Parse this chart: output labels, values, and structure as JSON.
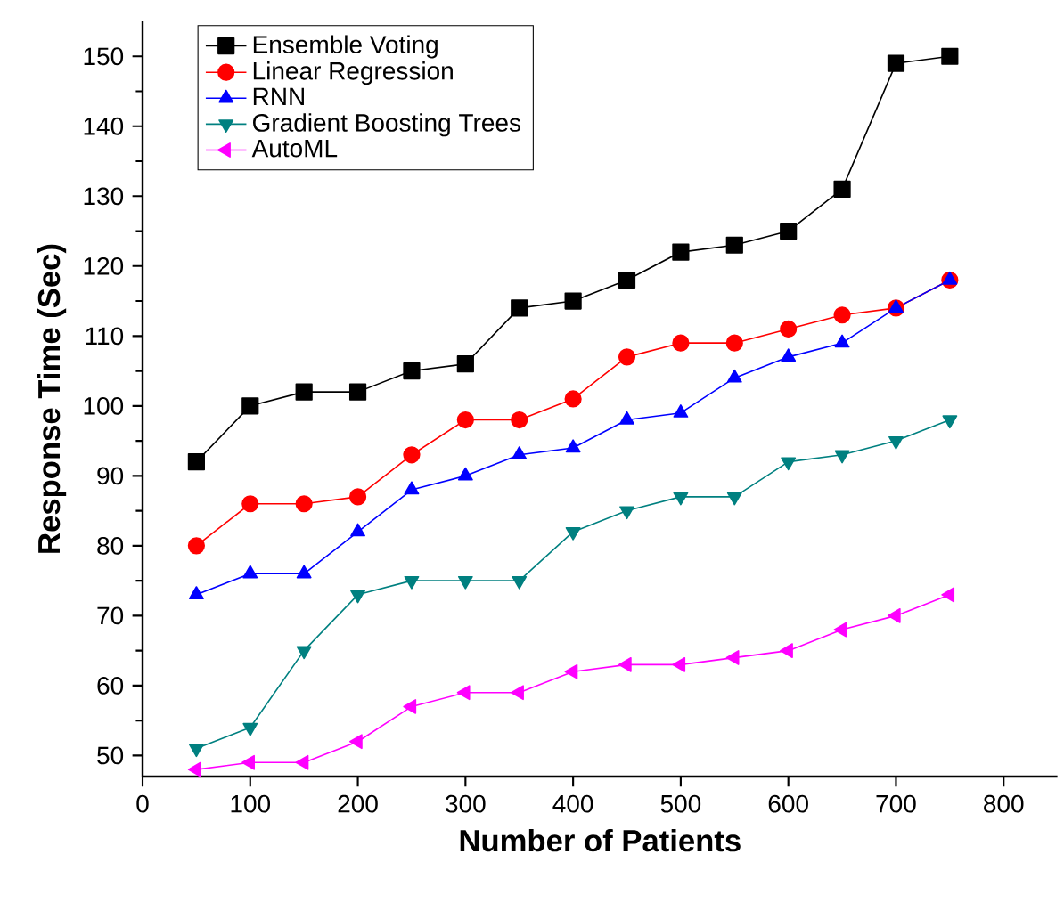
{
  "chart_data": {
    "type": "line",
    "xlabel": "Number of Patients",
    "ylabel": "Response Time (Sec)",
    "x": [
      50,
      100,
      150,
      200,
      250,
      300,
      350,
      400,
      450,
      500,
      550,
      600,
      650,
      700,
      750
    ],
    "series": [
      {
        "name": "Ensemble Voting",
        "color": "#000000",
        "marker": "square",
        "values": [
          92,
          100,
          102,
          102,
          105,
          106,
          114,
          115,
          118,
          122,
          123,
          125,
          131,
          149,
          150
        ]
      },
      {
        "name": "Linear Regression",
        "color": "#ff0000",
        "marker": "circle",
        "values": [
          80,
          86,
          86,
          87,
          93,
          98,
          98,
          101,
          107,
          109,
          109,
          111,
          113,
          114,
          118
        ]
      },
      {
        "name": "RNN",
        "color": "#0000ff",
        "marker": "triangle",
        "values": [
          73,
          76,
          76,
          82,
          88,
          90,
          93,
          94,
          98,
          99,
          104,
          107,
          109,
          114,
          118
        ]
      },
      {
        "name": "Gradient Boosting Trees",
        "color": "#008080",
        "marker": "triangle-down",
        "values": [
          51,
          54,
          65,
          73,
          75,
          75,
          75,
          82,
          85,
          87,
          87,
          92,
          93,
          95,
          98
        ]
      },
      {
        "name": "AutoML",
        "color": "#ff00ff",
        "marker": "triangle-left",
        "values": [
          48,
          49,
          49,
          52,
          57,
          59,
          59,
          62,
          63,
          63,
          64,
          65,
          68,
          70,
          73
        ]
      }
    ],
    "xlim": [
      0,
      850
    ],
    "xticks": [
      0,
      100,
      200,
      300,
      400,
      500,
      600,
      700,
      800
    ],
    "ylim": [
      47,
      155
    ],
    "yticks": [
      50,
      60,
      70,
      80,
      90,
      100,
      110,
      120,
      130,
      140,
      150
    ],
    "grid": false,
    "legend": "top left",
    "line_style": "solid"
  }
}
